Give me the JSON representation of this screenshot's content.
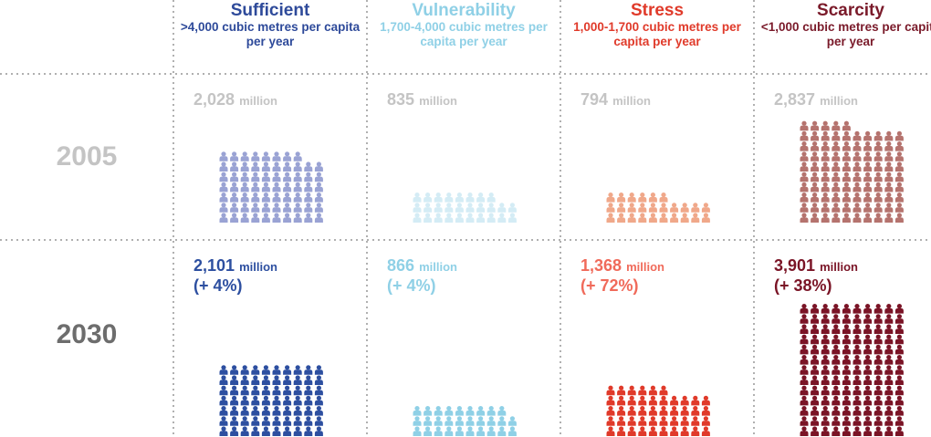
{
  "columns": [
    {
      "title": "Sufficient",
      "description": ">4,000 cubic metres per capita per year",
      "color": "#2e4a9a"
    },
    {
      "title": "Vulnerability",
      "description": "1,700-4,000 cubic metres per capita per year",
      "color": "#8fd0e6"
    },
    {
      "title": "Stress",
      "description": "1,000-1,700 cubic metres per capita per year",
      "color": "#e03a2a"
    },
    {
      "title": "Scarcity",
      "description": "<1,000 cubic metres per capita per year",
      "color": "#7a1a2a"
    }
  ],
  "rows": [
    {
      "year": "2005",
      "year_color": "#c4c4c4",
      "text_color": "#c4c4c4",
      "cells": [
        {
          "value": 2028,
          "label": "2,028",
          "unit": "million",
          "icon_color": "#9aa3d4"
        },
        {
          "value": 835,
          "label": "835",
          "unit": "million",
          "icon_color": "#d4ecf5"
        },
        {
          "value": 794,
          "label": "794",
          "unit": "million",
          "icon_color": "#f0a88a"
        },
        {
          "value": 2837,
          "label": "2,837",
          "unit": "million",
          "icon_color": "#b5736e"
        }
      ]
    },
    {
      "year": "2030",
      "year_color": "#6d6d6d",
      "cells": [
        {
          "value": 2101,
          "label": "2,101",
          "unit": "million",
          "change": "(+ 4%)",
          "text_color": "#2d4fa0",
          "icon_color": "#2d4fa0"
        },
        {
          "value": 866,
          "label": "866",
          "unit": "million",
          "change": "(+ 4%)",
          "text_color": "#8fd0e6",
          "icon_color": "#8fd0e6"
        },
        {
          "value": 1368,
          "label": "1,368",
          "unit": "million",
          "change": "(+ 72%)",
          "text_color": "#f06a5a",
          "icon_color": "#e03a2a"
        },
        {
          "value": 3901,
          "label": "3,901",
          "unit": "million",
          "change": "(+ 38%)",
          "text_color": "#7a1426",
          "icon_color": "#7a1426"
        }
      ]
    }
  ]
}
